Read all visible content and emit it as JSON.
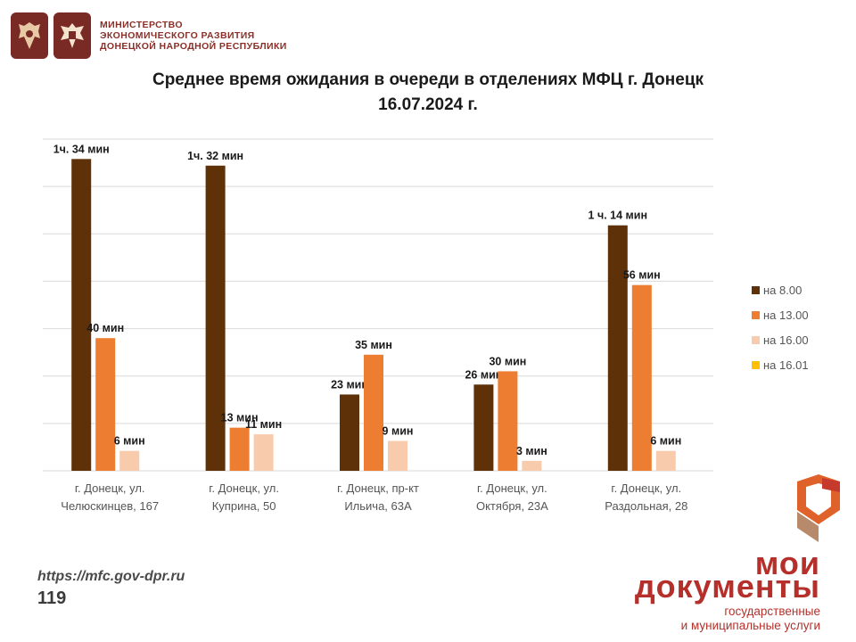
{
  "header": {
    "ministry_lines": [
      "МИНИСТЕРСТВО",
      "ЭКОНОМИЧЕСКОГО РАЗВИТИЯ",
      "ДОНЕЦКОЙ НАРОДНОЙ РЕСПУБЛИКИ"
    ]
  },
  "footer": {
    "url": "https://mfc.gov-dpr.ru",
    "page_number": "119"
  },
  "brand": {
    "top": "мои",
    "main": "документы",
    "sub_line1": "государственные",
    "sub_line2": "и муниципальные услуги"
  },
  "colors": {
    "series": [
      "#5e3108",
      "#ed7d31",
      "#f8cbad",
      "#ffc000"
    ],
    "grid": "#d9d9d9",
    "brand_red": "#b5302a"
  },
  "chart_data": {
    "type": "bar",
    "title": "Среднее время ожидания в очереди в отделениях МФЦ г. Донецк",
    "subtitle": "16.07.2024 г.",
    "categories": [
      [
        "г. Донецк, ул.",
        "Челюскинцев, 167"
      ],
      [
        "г. Донецк, ул.",
        "Куприна, 50"
      ],
      [
        "г. Донецк, пр-кт",
        "Ильича, 63А"
      ],
      [
        "г. Донецк, ул.",
        "Октября, 23А"
      ],
      [
        "г. Донецк, ул.",
        "Раздольная, 28"
      ]
    ],
    "unit": "min",
    "ylim": [
      0,
      100
    ],
    "grid": true,
    "legend_position": "right",
    "series": [
      {
        "name": "на 8.00",
        "values": [
          94,
          92,
          23,
          26,
          74
        ],
        "labels": [
          "1ч. 34 мин",
          "1ч. 32 мин",
          "23 мин",
          "26 мин",
          "1 ч. 14 мин"
        ]
      },
      {
        "name": "на 13.00",
        "values": [
          40,
          13,
          35,
          30,
          56
        ],
        "labels": [
          "40 мин",
          "13 мин",
          "35 мин",
          "30 мин",
          "56 мин"
        ]
      },
      {
        "name": "на 16.00",
        "values": [
          6,
          11,
          9,
          3,
          6
        ],
        "labels": [
          "6 мин",
          "11 мин",
          "9 мин",
          "3 мин",
          "6 мин"
        ]
      },
      {
        "name": "на 16.01",
        "values": [
          0,
          0,
          0,
          0,
          0
        ],
        "labels": [
          "",
          "",
          "",
          "",
          ""
        ]
      }
    ]
  }
}
